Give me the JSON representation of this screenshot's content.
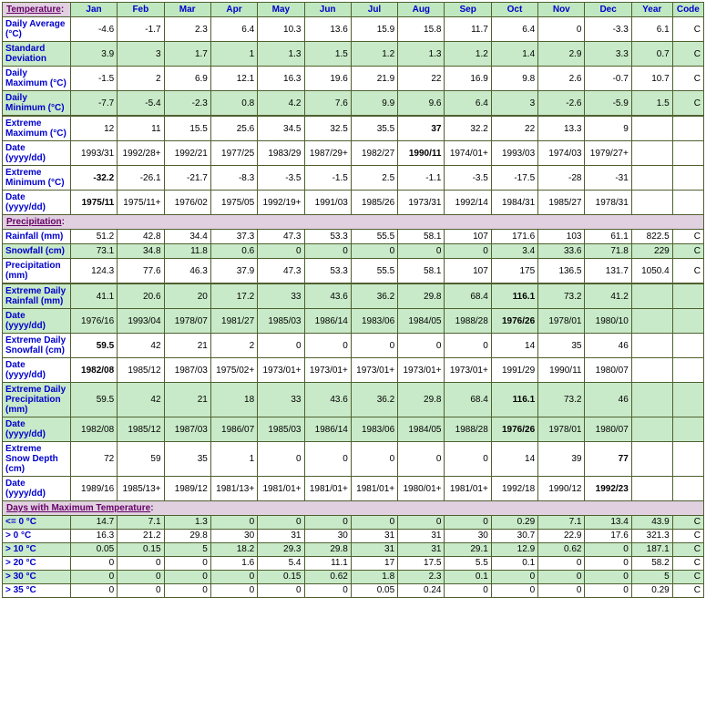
{
  "columns": [
    "Jan",
    "Feb",
    "Mar",
    "Apr",
    "May",
    "Jun",
    "Jul",
    "Aug",
    "Sep",
    "Oct",
    "Nov",
    "Dec",
    "Year",
    "Code"
  ],
  "sections": {
    "temperature": "Temperature",
    "precipitation": "Precipitation",
    "daysmaxtemp": "Days with Maximum Temperature"
  },
  "rows": {
    "davg": {
      "label": "Daily Average (°C)",
      "g": false,
      "v": [
        "-4.6",
        "-1.7",
        "2.3",
        "6.4",
        "10.3",
        "13.6",
        "15.9",
        "15.8",
        "11.7",
        "6.4",
        "0",
        "-3.3",
        "6.1",
        "C"
      ]
    },
    "sdev": {
      "label": "Standard Deviation",
      "g": true,
      "v": [
        "3.9",
        "3",
        "1.7",
        "1",
        "1.3",
        "1.5",
        "1.2",
        "1.3",
        "1.2",
        "1.4",
        "2.9",
        "3.3",
        "0.7",
        "C"
      ]
    },
    "dmax": {
      "label": "Daily Maximum (°C)",
      "g": false,
      "v": [
        "-1.5",
        "2",
        "6.9",
        "12.1",
        "16.3",
        "19.6",
        "21.9",
        "22",
        "16.9",
        "9.8",
        "2.6",
        "-0.7",
        "10.7",
        "C"
      ]
    },
    "dmin": {
      "label": "Daily Minimum (°C)",
      "g": true,
      "v": [
        "-7.7",
        "-5.4",
        "-2.3",
        "0.8",
        "4.2",
        "7.6",
        "9.9",
        "9.6",
        "6.4",
        "3",
        "-2.6",
        "-5.9",
        "1.5",
        "C"
      ]
    },
    "emax": {
      "label": "Extreme Maximum (°C)",
      "g": false,
      "v": [
        "12",
        "11",
        "15.5",
        "25.6",
        "34.5",
        "32.5",
        "35.5",
        "37",
        "32.2",
        "22",
        "13.3",
        "9",
        "",
        ""
      ],
      "bold": [
        7
      ]
    },
    "emaxd": {
      "label": "Date (yyyy/dd)",
      "g": false,
      "v": [
        "1993/31",
        "1992/28+",
        "1992/21",
        "1977/25",
        "1983/29",
        "1987/29+",
        "1982/27",
        "1990/11",
        "1974/01+",
        "1993/03",
        "1974/03",
        "1979/27+",
        "",
        ""
      ],
      "bold": [
        7
      ]
    },
    "emin": {
      "label": "Extreme Minimum (°C)",
      "g": false,
      "v": [
        "-32.2",
        "-26.1",
        "-21.7",
        "-8.3",
        "-3.5",
        "-1.5",
        "2.5",
        "-1.1",
        "-3.5",
        "-17.5",
        "-28",
        "-31",
        "",
        ""
      ],
      "bold": [
        0
      ]
    },
    "emind": {
      "label": "Date (yyyy/dd)",
      "g": false,
      "v": [
        "1975/11",
        "1975/11+",
        "1976/02",
        "1975/05",
        "1992/19+",
        "1991/03",
        "1985/26",
        "1973/31",
        "1992/14",
        "1984/31",
        "1985/27",
        "1978/31",
        "",
        ""
      ],
      "bold": [
        0
      ]
    },
    "rain": {
      "label": "Rainfall (mm)",
      "g": false,
      "v": [
        "51.2",
        "42.8",
        "34.4",
        "37.3",
        "47.3",
        "53.3",
        "55.5",
        "58.1",
        "107",
        "171.6",
        "103",
        "61.1",
        "822.5",
        "C"
      ]
    },
    "snow": {
      "label": "Snowfall (cm)",
      "g": true,
      "v": [
        "73.1",
        "34.8",
        "11.8",
        "0.6",
        "0",
        "0",
        "0",
        "0",
        "0",
        "3.4",
        "33.6",
        "71.8",
        "229",
        "C"
      ]
    },
    "prec": {
      "label": "Precipitation (mm)",
      "g": false,
      "v": [
        "124.3",
        "77.6",
        "46.3",
        "37.9",
        "47.3",
        "53.3",
        "55.5",
        "58.1",
        "107",
        "175",
        "136.5",
        "131.7",
        "1050.4",
        "C"
      ]
    },
    "edr": {
      "label": "Extreme Daily Rainfall (mm)",
      "g": true,
      "v": [
        "41.1",
        "20.6",
        "20",
        "17.2",
        "33",
        "43.6",
        "36.2",
        "29.8",
        "68.4",
        "116.1",
        "73.2",
        "41.2",
        "",
        ""
      ],
      "bold": [
        9
      ]
    },
    "edrd": {
      "label": "Date (yyyy/dd)",
      "g": true,
      "v": [
        "1976/16",
        "1993/04",
        "1978/07",
        "1981/27",
        "1985/03",
        "1986/14",
        "1983/06",
        "1984/05",
        "1988/28",
        "1976/26",
        "1978/01",
        "1980/10",
        "",
        ""
      ],
      "bold": [
        9
      ]
    },
    "eds": {
      "label": "Extreme Daily Snowfall (cm)",
      "g": false,
      "v": [
        "59.5",
        "42",
        "21",
        "2",
        "0",
        "0",
        "0",
        "0",
        "0",
        "14",
        "35",
        "46",
        "",
        ""
      ],
      "bold": [
        0
      ]
    },
    "edsd": {
      "label": "Date (yyyy/dd)",
      "g": false,
      "v": [
        "1982/08",
        "1985/12",
        "1987/03",
        "1975/02+",
        "1973/01+",
        "1973/01+",
        "1973/01+",
        "1973/01+",
        "1973/01+",
        "1991/29",
        "1990/11",
        "1980/07",
        "",
        ""
      ],
      "bold": [
        0
      ]
    },
    "edp": {
      "label": "Extreme Daily Precipitation (mm)",
      "g": true,
      "v": [
        "59.5",
        "42",
        "21",
        "18",
        "33",
        "43.6",
        "36.2",
        "29.8",
        "68.4",
        "116.1",
        "73.2",
        "46",
        "",
        ""
      ],
      "bold": [
        9
      ]
    },
    "edpd": {
      "label": "Date (yyyy/dd)",
      "g": true,
      "v": [
        "1982/08",
        "1985/12",
        "1987/03",
        "1986/07",
        "1985/03",
        "1986/14",
        "1983/06",
        "1984/05",
        "1988/28",
        "1976/26",
        "1978/01",
        "1980/07",
        "",
        ""
      ],
      "bold": [
        9
      ]
    },
    "esd": {
      "label": "Extreme Snow Depth (cm)",
      "g": false,
      "v": [
        "72",
        "59",
        "35",
        "1",
        "0",
        "0",
        "0",
        "0",
        "0",
        "14",
        "39",
        "77",
        "",
        ""
      ],
      "bold": [
        11
      ]
    },
    "esdd": {
      "label": "Date (yyyy/dd)",
      "g": false,
      "v": [
        "1989/16",
        "1985/13+",
        "1989/12",
        "1981/13+",
        "1981/01+",
        "1981/01+",
        "1981/01+",
        "1980/01+",
        "1981/01+",
        "1992/18",
        "1990/12",
        "1992/23",
        "",
        ""
      ],
      "bold": [
        11
      ]
    },
    "le0": {
      "label": "<= 0 °C",
      "g": true,
      "v": [
        "14.7",
        "7.1",
        "1.3",
        "0",
        "0",
        "0",
        "0",
        "0",
        "0",
        "0.29",
        "7.1",
        "13.4",
        "43.9",
        "C"
      ]
    },
    "gt0": {
      "label": "> 0 °C",
      "g": false,
      "v": [
        "16.3",
        "21.2",
        "29.8",
        "30",
        "31",
        "30",
        "31",
        "31",
        "30",
        "30.7",
        "22.9",
        "17.6",
        "321.3",
        "C"
      ]
    },
    "gt10": {
      "label": "> 10 °C",
      "g": true,
      "v": [
        "0.05",
        "0.15",
        "5",
        "18.2",
        "29.3",
        "29.8",
        "31",
        "31",
        "29.1",
        "12.9",
        "0.62",
        "0",
        "187.1",
        "C"
      ]
    },
    "gt20": {
      "label": "> 20 °C",
      "g": false,
      "v": [
        "0",
        "0",
        "0",
        "1.6",
        "5.4",
        "11.1",
        "17",
        "17.5",
        "5.5",
        "0.1",
        "0",
        "0",
        "58.2",
        "C"
      ]
    },
    "gt30": {
      "label": "> 30 °C",
      "g": true,
      "v": [
        "0",
        "0",
        "0",
        "0",
        "0.15",
        "0.62",
        "1.8",
        "2.3",
        "0.1",
        "0",
        "0",
        "0",
        "5",
        "C"
      ]
    },
    "gt35": {
      "label": "> 35 °C",
      "g": false,
      "v": [
        "0",
        "0",
        "0",
        "0",
        "0",
        "0",
        "0.05",
        "0.24",
        "0",
        "0",
        "0",
        "0",
        "0.29",
        "C"
      ]
    }
  }
}
